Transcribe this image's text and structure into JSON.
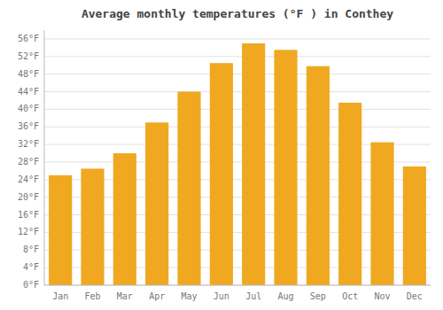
{
  "chart_data": {
    "type": "bar",
    "title": "Average monthly temperatures (°F ) in Conthey",
    "categories": [
      "Jan",
      "Feb",
      "Mar",
      "Apr",
      "May",
      "Jun",
      "Jul",
      "Aug",
      "Sep",
      "Oct",
      "Nov",
      "Dec"
    ],
    "values": [
      25.0,
      26.5,
      30.0,
      37.0,
      44.0,
      50.5,
      55.0,
      53.5,
      49.8,
      41.5,
      32.5,
      27.0
    ],
    "color": "#F0A820",
    "ylim": [
      0,
      58
    ],
    "yticks": [
      {
        "value": 0,
        "label": "0°F"
      },
      {
        "value": 4,
        "label": "4°F"
      },
      {
        "value": 8,
        "label": "8°F"
      },
      {
        "value": 12,
        "label": "12°F"
      },
      {
        "value": 16,
        "label": "16°F"
      },
      {
        "value": 20,
        "label": "20°F"
      },
      {
        "value": 24,
        "label": "24°F"
      },
      {
        "value": 28,
        "label": "28°F"
      },
      {
        "value": 32,
        "label": "32°F"
      },
      {
        "value": 36,
        "label": "36°F"
      },
      {
        "value": 40,
        "label": "40°F"
      },
      {
        "value": 44,
        "label": "44°F"
      },
      {
        "value": 48,
        "label": "48°F"
      },
      {
        "value": 52,
        "label": "52°F"
      },
      {
        "value": 56,
        "label": "56°F"
      }
    ],
    "grid": true
  }
}
